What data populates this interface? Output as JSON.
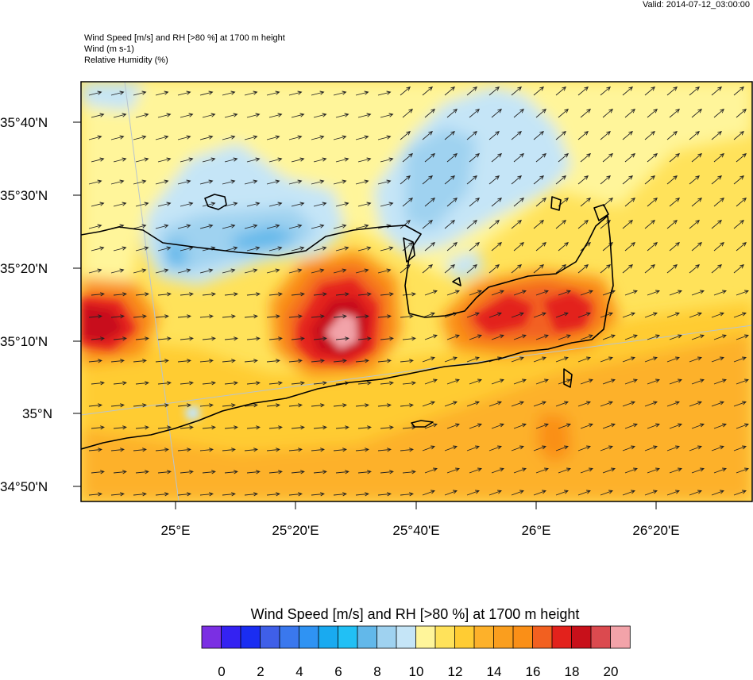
{
  "header": {
    "valid": "Valid: 2014-07-12_03:00:00",
    "line1": "Wind Speed [m/s] and RH [>80 %] at 1700 m height",
    "line2": "Wind   (m s-1)",
    "line3": "Relative Humidity   (%)"
  },
  "map": {
    "lat_labels": [
      "35°40'N",
      "35°30'N",
      "35°20'N",
      "35°10'N",
      "35°N",
      "34°50'N"
    ],
    "lon_labels": [
      "25°E",
      "25°20'E",
      "25°40'E",
      "26°E",
      "26°20'E"
    ],
    "field_colors": {
      "light_blue": "#c5e5f7",
      "mid_blue": "#9fd2f0",
      "blue": "#62b8ea",
      "pale_yellow": "#fff59a",
      "yellow": "#ffe25a",
      "gold": "#ffcc33",
      "orange": "#fdb12a",
      "dark_orange": "#fa8f17",
      "red_orange": "#f26020",
      "red": "#e3221c",
      "dark_red": "#c8101a",
      "pink": "#f2a3a9"
    }
  },
  "colorbar": {
    "title": "Wind Speed [m/s] and RH [>80 %] at 1700 m height",
    "colors": [
      "#7b2fe3",
      "#3422f2",
      "#1a2df2",
      "#3f5fe8",
      "#3a78ee",
      "#2f93f3",
      "#19aaf0",
      "#21c0f5",
      "#62b8ea",
      "#9fd2f0",
      "#c5e5f7",
      "#fff59a",
      "#ffe25a",
      "#ffcc33",
      "#fdb12a",
      "#fa9e1e",
      "#fa8f17",
      "#f26020",
      "#e3221c",
      "#c8101a",
      "#db4a4f",
      "#f2a3a9"
    ],
    "labels": [
      "0",
      "2",
      "4",
      "6",
      "8",
      "10",
      "12",
      "14",
      "16",
      "18",
      "20"
    ]
  }
}
